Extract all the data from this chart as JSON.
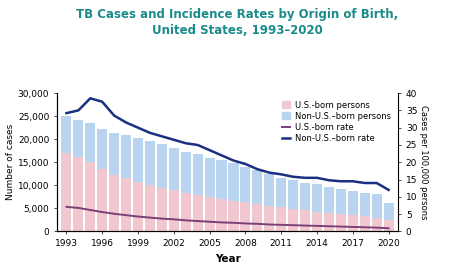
{
  "title": "TB Cases and Incidence Rates by Origin of Birth,\nUnited States, 1993–2020",
  "title_color": "#1a8a8a",
  "xlabel": "Year",
  "ylabel_left": "Number of cases",
  "ylabel_right": "Cases per 100,000 persons",
  "years": [
    1993,
    1994,
    1995,
    1996,
    1997,
    1998,
    1999,
    2000,
    2001,
    2002,
    2003,
    2004,
    2005,
    2006,
    2007,
    2008,
    2009,
    2010,
    2011,
    2012,
    2013,
    2014,
    2015,
    2016,
    2017,
    2018,
    2019,
    2020
  ],
  "us_born": [
    17100,
    16200,
    15000,
    13500,
    12200,
    11500,
    10700,
    10000,
    9500,
    8900,
    8300,
    7900,
    7400,
    7000,
    6600,
    6300,
    5900,
    5500,
    5200,
    4900,
    4600,
    4300,
    3900,
    3700,
    3500,
    3300,
    3000,
    2400
  ],
  "non_us_born": [
    7900,
    8000,
    8500,
    8800,
    9200,
    9400,
    9600,
    9700,
    9500,
    9300,
    9000,
    8800,
    8600,
    8500,
    8200,
    7600,
    7400,
    7000,
    6400,
    6200,
    6000,
    5900,
    5700,
    5500,
    5200,
    5000,
    5100,
    3800
  ],
  "us_born_rate": [
    7.1,
    6.8,
    6.2,
    5.6,
    5.1,
    4.7,
    4.3,
    4.0,
    3.7,
    3.5,
    3.2,
    3.0,
    2.8,
    2.6,
    2.5,
    2.3,
    2.2,
    2.0,
    1.9,
    1.8,
    1.7,
    1.6,
    1.5,
    1.4,
    1.3,
    1.2,
    1.1,
    0.9
  ],
  "non_us_born_rate": [
    34.2,
    35.0,
    38.5,
    37.5,
    33.5,
    31.5,
    30.0,
    28.5,
    27.5,
    26.5,
    25.5,
    25.0,
    23.5,
    22.0,
    20.5,
    19.5,
    18.0,
    17.0,
    16.5,
    15.8,
    15.5,
    15.5,
    14.8,
    14.5,
    14.5,
    14.0,
    14.0,
    12.0
  ],
  "us_born_bar_color": "#f2c8d0",
  "non_us_born_bar_color": "#b8d4f0",
  "us_rate_color": "#7b3f7a",
  "non_us_rate_color": "#1a3080",
  "ylim_left": [
    0,
    30000
  ],
  "ylim_right": [
    0,
    40
  ],
  "yticks_left": [
    0,
    5000,
    10000,
    15000,
    20000,
    25000,
    30000
  ],
  "yticks_right": [
    0,
    5,
    10,
    15,
    20,
    25,
    30,
    35,
    40
  ],
  "xticks": [
    1993,
    1996,
    1999,
    2002,
    2005,
    2008,
    2011,
    2014,
    2017,
    2020
  ],
  "bg_color": "#ffffff",
  "legend_labels": [
    "U.S.-born persons",
    "Non-U.S.–born persons",
    "U.S.-born rate",
    "Non-U.S.–born rate"
  ]
}
